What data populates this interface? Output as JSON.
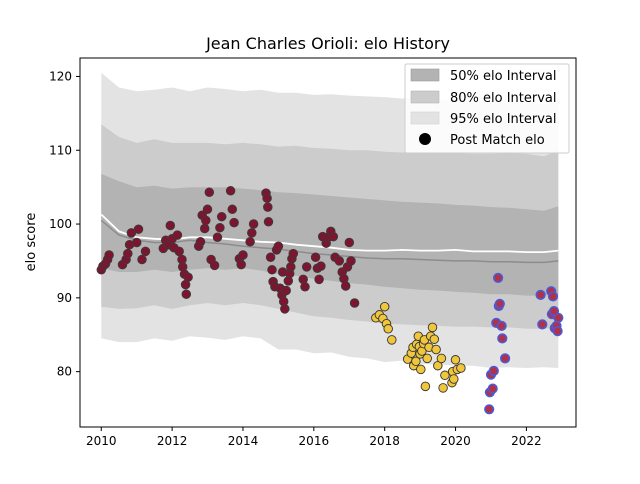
{
  "chart_data": {
    "type": "scatter",
    "title": "Jean Charles Orioli: elo History",
    "xlabel": "",
    "ylabel": "elo score",
    "xlim": [
      2009.4,
      2023.4
    ],
    "ylim": [
      72.5,
      122.5
    ],
    "xticks": [
      2010,
      2012,
      2014,
      2016,
      2018,
      2020,
      2022
    ],
    "yticks": [
      80,
      90,
      100,
      110,
      120
    ],
    "xtick_labels": [
      "2010",
      "2012",
      "2014",
      "2016",
      "2018",
      "2020",
      "2022"
    ],
    "ytick_labels": [
      "80",
      "90",
      "100",
      "110",
      "120"
    ],
    "grid": false,
    "legend_position": "top-right",
    "legend": {
      "i50": "50% elo Interval",
      "i80": "80% elo Interval",
      "i95": "95% elo Interval",
      "post": "Post Match elo"
    },
    "colors": {
      "band50": "#b3b3b3",
      "band80": "#cccccc",
      "band95": "#e3e3e3",
      "median_line": "#8c8c8c",
      "mean_line": "#ffffff",
      "dot_maroon": "#7d1530",
      "dot_yellow": "#f0c63c",
      "dot_blue": "#b33049",
      "dot_edge_blue": "#4a5bd4"
    },
    "bands": {
      "x": [
        2010.0,
        2010.5,
        2011.0,
        2011.5,
        2012.0,
        2012.5,
        2013.0,
        2013.5,
        2014.0,
        2014.5,
        2015.0,
        2015.5,
        2016.0,
        2016.5,
        2017.0,
        2017.5,
        2018.0,
        2018.5,
        2019.0,
        2019.5,
        2020.0,
        2020.5,
        2021.0,
        2021.5,
        2022.0,
        2022.5,
        2022.9
      ],
      "i95_upper": [
        120.5,
        118.5,
        118.0,
        118.2,
        118.5,
        118.0,
        118.5,
        118.3,
        118.0,
        118.2,
        117.8,
        117.8,
        117.5,
        117.6,
        117.4,
        117.3,
        117.2,
        117.0,
        117.2,
        116.8,
        117.0,
        116.8,
        116.6,
        116.7,
        116.5,
        116.2,
        116.8
      ],
      "i95_lower": [
        84.5,
        84.0,
        84.0,
        84.5,
        84.2,
        84.8,
        84.6,
        84.3,
        84.8,
        84.5,
        83.0,
        83.0,
        82.5,
        82.6,
        82.0,
        81.8,
        81.3,
        81.5,
        81.0,
        81.0,
        80.8,
        80.8,
        80.5,
        80.6,
        80.5,
        80.6,
        80.5
      ],
      "i80_upper": [
        113.5,
        111.8,
        111.0,
        111.5,
        111.0,
        111.0,
        111.0,
        110.8,
        111.0,
        110.8,
        110.5,
        110.6,
        110.3,
        110.2,
        110.0,
        110.0,
        109.8,
        109.7,
        109.7,
        109.6,
        109.6,
        109.5,
        109.5,
        109.6,
        109.5,
        109.2,
        110.0
      ],
      "i80_lower": [
        88.8,
        88.5,
        88.6,
        89.0,
        88.5,
        89.0,
        89.3,
        89.0,
        89.3,
        89.0,
        88.5,
        88.0,
        87.5,
        87.3,
        87.0,
        86.8,
        86.5,
        86.4,
        86.3,
        86.2,
        86.1,
        86.1,
        86.0,
        86.0,
        85.8,
        85.8,
        86.0
      ],
      "i50_upper": [
        106.8,
        105.8,
        105.0,
        105.2,
        104.8,
        105.0,
        105.0,
        105.0,
        104.8,
        104.6,
        104.3,
        104.2,
        104.0,
        103.8,
        103.6,
        103.4,
        103.2,
        103.0,
        102.9,
        102.8,
        102.6,
        102.5,
        102.3,
        102.2,
        102.0,
        101.8,
        102.4
      ],
      "i50_lower": [
        94.0,
        93.5,
        93.5,
        93.8,
        93.5,
        93.8,
        94.0,
        93.8,
        94.0,
        93.7,
        93.2,
        93.0,
        92.6,
        92.3,
        92.0,
        91.8,
        91.5,
        91.3,
        91.1,
        91.0,
        90.8,
        90.7,
        90.5,
        90.5,
        90.3,
        90.3,
        90.5
      ],
      "median": [
        100.5,
        98.5,
        97.8,
        97.5,
        97.5,
        97.8,
        97.5,
        97.3,
        97.0,
        96.8,
        96.6,
        96.3,
        96.0,
        95.8,
        95.6,
        95.4,
        95.3,
        95.3,
        95.2,
        95.1,
        95.0,
        95.0,
        94.9,
        94.9,
        94.8,
        94.8,
        95.0
      ],
      "mean": [
        101.3,
        99.0,
        98.2,
        98.0,
        97.9,
        98.2,
        98.2,
        98.0,
        97.8,
        97.6,
        97.5,
        97.2,
        97.0,
        96.8,
        96.5,
        96.4,
        96.4,
        96.5,
        96.4,
        96.4,
        96.5,
        96.3,
        96.3,
        96.3,
        96.2,
        96.2,
        96.4
      ]
    },
    "series": [
      {
        "style": "maroon",
        "points": [
          [
            2010.0,
            93.8
          ],
          [
            2010.05,
            94.3
          ],
          [
            2010.12,
            94.6
          ],
          [
            2010.18,
            95.2
          ],
          [
            2010.22,
            95.8
          ],
          [
            2010.6,
            94.5
          ],
          [
            2010.7,
            95.2
          ],
          [
            2010.75,
            96.0
          ],
          [
            2010.8,
            97.2
          ],
          [
            2010.85,
            98.8
          ],
          [
            2011.0,
            97.5
          ],
          [
            2011.05,
            99.3
          ],
          [
            2011.15,
            95.2
          ],
          [
            2011.25,
            96.3
          ],
          [
            2011.75,
            96.7
          ],
          [
            2011.82,
            97.8
          ],
          [
            2011.9,
            97.2
          ],
          [
            2011.95,
            99.8
          ],
          [
            2012.0,
            98.0
          ],
          [
            2012.05,
            96.8
          ],
          [
            2012.15,
            98.5
          ],
          [
            2012.2,
            96.3
          ],
          [
            2012.28,
            95.2
          ],
          [
            2012.3,
            94.2
          ],
          [
            2012.35,
            93.2
          ],
          [
            2012.38,
            91.8
          ],
          [
            2012.4,
            90.5
          ],
          [
            2012.45,
            92.8
          ],
          [
            2012.75,
            97.0
          ],
          [
            2012.8,
            97.6
          ],
          [
            2012.85,
            101.2
          ],
          [
            2012.92,
            99.4
          ],
          [
            2012.95,
            100.5
          ],
          [
            2013.0,
            102.0
          ],
          [
            2013.05,
            104.3
          ],
          [
            2013.1,
            95.2
          ],
          [
            2013.2,
            94.4
          ],
          [
            2013.28,
            98.2
          ],
          [
            2013.35,
            99.5
          ],
          [
            2013.4,
            101.0
          ],
          [
            2013.65,
            104.5
          ],
          [
            2013.7,
            102.0
          ],
          [
            2013.75,
            100.2
          ],
          [
            2013.9,
            95.3
          ],
          [
            2013.95,
            94.5
          ],
          [
            2014.0,
            95.8
          ],
          [
            2014.2,
            97.6
          ],
          [
            2014.25,
            98.8
          ],
          [
            2014.3,
            100.0
          ],
          [
            2014.65,
            104.2
          ],
          [
            2014.68,
            103.5
          ],
          [
            2014.7,
            102.3
          ],
          [
            2014.72,
            100.3
          ],
          [
            2014.78,
            95.5
          ],
          [
            2014.82,
            93.8
          ],
          [
            2014.85,
            92.2
          ],
          [
            2014.9,
            91.5
          ],
          [
            2014.95,
            96.5
          ],
          [
            2015.0,
            97.0
          ],
          [
            2015.05,
            91.3
          ],
          [
            2015.1,
            90.4
          ],
          [
            2015.12,
            93.5
          ],
          [
            2015.15,
            89.5
          ],
          [
            2015.18,
            88.5
          ],
          [
            2015.22,
            91.0
          ],
          [
            2015.28,
            92.3
          ],
          [
            2015.32,
            93.3
          ],
          [
            2015.35,
            94.2
          ],
          [
            2015.38,
            95.3
          ],
          [
            2015.42,
            96.0
          ],
          [
            2015.7,
            92.5
          ],
          [
            2015.75,
            91.5
          ],
          [
            2015.8,
            94.2
          ],
          [
            2016.05,
            95.5
          ],
          [
            2016.1,
            94.0
          ],
          [
            2016.15,
            92.5
          ],
          [
            2016.2,
            94.3
          ],
          [
            2016.25,
            98.3
          ],
          [
            2016.35,
            97.4
          ],
          [
            2016.4,
            98.2
          ],
          [
            2016.48,
            99.0
          ],
          [
            2016.55,
            98.3
          ],
          [
            2016.6,
            95.5
          ],
          [
            2016.72,
            95.0
          ],
          [
            2016.8,
            93.5
          ],
          [
            2016.85,
            92.6
          ],
          [
            2016.9,
            91.6
          ],
          [
            2016.95,
            94.2
          ],
          [
            2017.0,
            97.5
          ],
          [
            2017.05,
            95.0
          ],
          [
            2017.15,
            89.3
          ]
        ]
      },
      {
        "style": "yellow",
        "points": [
          [
            2017.75,
            87.3
          ],
          [
            2017.85,
            87.7
          ],
          [
            2017.95,
            87.2
          ],
          [
            2018.0,
            88.8
          ],
          [
            2018.05,
            86.5
          ],
          [
            2018.1,
            85.8
          ],
          [
            2018.2,
            84.3
          ],
          [
            2018.65,
            81.7
          ],
          [
            2018.75,
            82.5
          ],
          [
            2018.8,
            83.3
          ],
          [
            2018.82,
            80.8
          ],
          [
            2018.88,
            81.4
          ],
          [
            2018.9,
            83.7
          ],
          [
            2018.95,
            84.8
          ],
          [
            2018.98,
            83.4
          ],
          [
            2019.0,
            82.4
          ],
          [
            2019.02,
            80.3
          ],
          [
            2019.05,
            82.8
          ],
          [
            2019.1,
            83.8
          ],
          [
            2019.12,
            84.3
          ],
          [
            2019.15,
            78.0
          ],
          [
            2019.2,
            81.8
          ],
          [
            2019.25,
            83.3
          ],
          [
            2019.3,
            84.8
          ],
          [
            2019.35,
            86.0
          ],
          [
            2019.4,
            84.4
          ],
          [
            2019.45,
            83.0
          ],
          [
            2019.5,
            80.8
          ],
          [
            2019.6,
            81.8
          ],
          [
            2019.65,
            77.8
          ],
          [
            2019.7,
            79.5
          ],
          [
            2019.9,
            78.5
          ],
          [
            2019.92,
            80.0
          ],
          [
            2019.95,
            79.0
          ],
          [
            2020.0,
            81.6
          ],
          [
            2020.05,
            80.3
          ],
          [
            2020.15,
            80.5
          ]
        ]
      },
      {
        "style": "blue",
        "points": [
          [
            2020.95,
            74.9
          ],
          [
            2020.97,
            77.2
          ],
          [
            2021.0,
            79.6
          ],
          [
            2021.05,
            77.7
          ],
          [
            2021.08,
            80.1
          ],
          [
            2021.15,
            86.6
          ],
          [
            2021.2,
            92.7
          ],
          [
            2021.22,
            88.9
          ],
          [
            2021.25,
            89.2
          ],
          [
            2021.3,
            86.2
          ],
          [
            2021.32,
            84.5
          ],
          [
            2021.4,
            81.8
          ],
          [
            2022.4,
            90.4
          ],
          [
            2022.45,
            86.4
          ],
          [
            2022.7,
            90.9
          ],
          [
            2022.72,
            87.8
          ],
          [
            2022.75,
            90.2
          ],
          [
            2022.78,
            88.2
          ],
          [
            2022.8,
            85.9
          ],
          [
            2022.85,
            86.2
          ],
          [
            2022.88,
            85.5
          ],
          [
            2022.9,
            87.3
          ]
        ]
      }
    ]
  }
}
